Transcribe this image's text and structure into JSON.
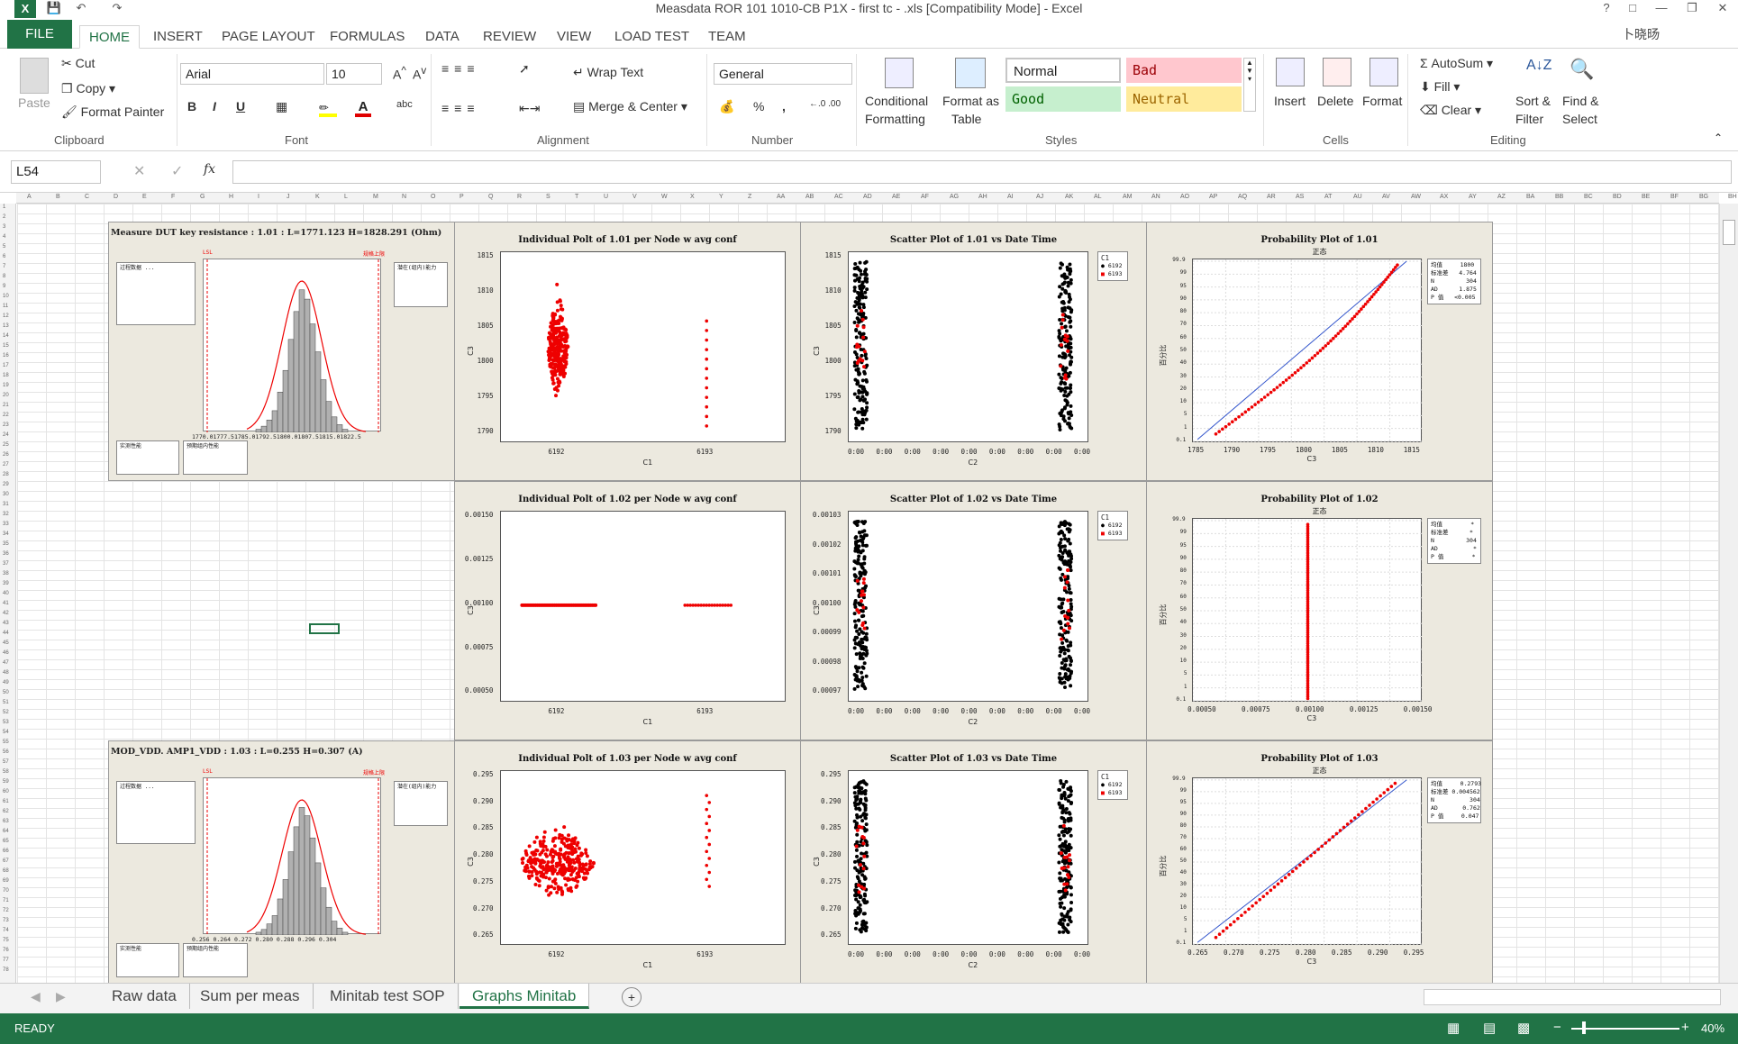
{
  "window": {
    "title": "Measdata ROR 101 1010-CB P1X - first tc - .xls  [Compatibility Mode] - Excel",
    "help": "?",
    "user": "卜晓旸"
  },
  "menu": {
    "tabs": [
      "FILE",
      "HOME",
      "INSERT",
      "PAGE LAYOUT",
      "FORMULAS",
      "DATA",
      "REVIEW",
      "VIEW",
      "LOAD TEST",
      "TEAM"
    ]
  },
  "ribbon": {
    "clipboard": {
      "paste": "Paste",
      "cut": "Cut",
      "copy": "Copy",
      "format_painter": "Format Painter",
      "label": "Clipboard"
    },
    "font": {
      "name": "Arial",
      "size": "10",
      "label": "Font",
      "bold": "B",
      "italic": "I",
      "underline": "U"
    },
    "alignment": {
      "wrap": "Wrap Text",
      "merge": "Merge & Center",
      "label": "Alignment"
    },
    "number": {
      "format": "General",
      "percent": "%",
      "comma": ",",
      "label": "Number"
    },
    "styles": {
      "conditional": "Conditional",
      "conditional2": "Formatting",
      "format_as": "Format as",
      "format_as2": "Table",
      "normal": "Normal",
      "bad": "Bad",
      "good": "Good",
      "neutral": "Neutral",
      "label": "Styles"
    },
    "cells": {
      "insert": "Insert",
      "delete": "Delete",
      "format": "Format",
      "label": "Cells"
    },
    "editing": {
      "autosum": "AutoSum",
      "fill": "Fill",
      "clear": "Clear",
      "sort": "Sort &",
      "sort2": "Filter",
      "find": "Find &",
      "find2": "Select",
      "label": "Editing"
    }
  },
  "formula_bar": {
    "name_box": "L54",
    "fx": "fx",
    "value": ""
  },
  "sheet": {
    "columns": [
      "A",
      "B",
      "C",
      "D",
      "E",
      "F",
      "G",
      "H",
      "I",
      "J",
      "K",
      "L",
      "M",
      "N",
      "O",
      "P",
      "Q",
      "R",
      "S",
      "T",
      "U",
      "V",
      "W",
      "X",
      "Y",
      "Z",
      "AA",
      "AB",
      "AC",
      "AD",
      "AE",
      "AF",
      "AG",
      "AH",
      "AI",
      "AJ",
      "AK",
      "AL",
      "AM",
      "AN",
      "AO",
      "AP",
      "AQ",
      "AR",
      "AS",
      "AT",
      "AU",
      "AV",
      "AW",
      "AX",
      "AY",
      "AZ",
      "BA",
      "BB",
      "BC",
      "BD",
      "BE",
      "BF",
      "BG",
      "BH"
    ]
  },
  "panels": {
    "row1": {
      "cap_title": "Measure DUT key resistance : 1.01 : L=1771.123 H=1828.291 (Ohm)",
      "cap_lsl": "LSL",
      "cap_usl": "规格上限",
      "cap_xticks": "1770.01777.51785.01792.51800.01807.51815.01822.5",
      "ind_title": "Individual Polt of 1.01 per Node w avg conf",
      "ind_y": [
        "1815",
        "1810",
        "1805",
        "1800",
        "1795",
        "1790"
      ],
      "ind_x": [
        "6192",
        "6193"
      ],
      "ind_xlabel": "C1",
      "sc_title": "Scatter Plot of 1.01 vs Date Time",
      "sc_y": [
        "1815",
        "1810",
        "1805",
        "1800",
        "1795",
        "1790"
      ],
      "sc_xlabel": "C2",
      "prob_title": "Probability Plot of 1.01",
      "prob_sub": "正态",
      "prob_x": [
        "1785",
        "1790",
        "1795",
        "1800",
        "1805",
        "1810",
        "1815"
      ],
      "prob_xlabel": "C3",
      "prob_stats": [
        "均值     1800",
        "标准差   4.764",
        "N         304",
        "AD      1.875",
        "P 值   <0.005"
      ]
    },
    "row2": {
      "ind_title": "Individual Polt of 1.02 per Node w avg conf",
      "ind_y": [
        "0.00150",
        "0.00125",
        "0.00100",
        "0.00075",
        "0.00050"
      ],
      "ind_x": [
        "6192",
        "6193"
      ],
      "ind_xlabel": "C1",
      "sc_title": "Scatter Plot of 1.02 vs Date Time",
      "sc_y": [
        "0.00103",
        "0.00102",
        "0.00101",
        "0.00100",
        "0.00099",
        "0.00098",
        "0.00097"
      ],
      "sc_xlabel": "C2",
      "prob_title": "Probability Plot of 1.02",
      "prob_sub": "正态",
      "prob_x": [
        "0.00050",
        "0.00075",
        "0.00100",
        "0.00125",
        "0.00150"
      ],
      "prob_xlabel": "C3",
      "prob_stats": [
        "均值        *",
        "标准差      *",
        "N         304",
        "AD          *",
        "P 值        *"
      ]
    },
    "row3": {
      "cap_title": "MOD_VDD. AMP1_VDD : 1.03 : L=0.255 H=0.307 (A)",
      "cap_lsl": "LSL",
      "cap_usl": "规格上限",
      "cap_xticks": "0.256  0.264  0.272  0.280  0.288  0.296  0.304",
      "ind_title": "Individual Polt of 1.03 per Node w avg conf",
      "ind_y": [
        "0.295",
        "0.290",
        "0.285",
        "0.280",
        "0.275",
        "0.270",
        "0.265"
      ],
      "ind_x": [
        "6192",
        "6193"
      ],
      "ind_xlabel": "C1",
      "sc_title": "Scatter Plot of 1.03 vs Date Time",
      "sc_y": [
        "0.295",
        "0.290",
        "0.285",
        "0.280",
        "0.275",
        "0.270",
        "0.265"
      ],
      "sc_xlabel": "C2",
      "prob_title": "Probability Plot of 1.03",
      "prob_sub": "正态",
      "prob_x": [
        "0.265",
        "0.270",
        "0.275",
        "0.280",
        "0.285",
        "0.290",
        "0.295"
      ],
      "prob_xlabel": "C3",
      "prob_stats": [
        "均值     0.2793",
        "标准差 0.004562",
        "N          304",
        "AD       0.762",
        "P 值     0.047"
      ]
    },
    "common": {
      "sc_x_tick": "0:00",
      "legend": [
        "C1",
        "6192",
        "6193"
      ],
      "prob_y": [
        "99.9",
        "99",
        "95",
        "90",
        "80",
        "70",
        "60",
        "50",
        "40",
        "30",
        "20",
        "10",
        "5",
        "1",
        "0.1"
      ],
      "prob_ylabel": "百分比",
      "ind_ylabel": "C3",
      "sc_ylabel": "C3"
    }
  },
  "sheet_tabs": [
    "Raw data",
    "Sum per meas",
    "Minitab test SOP",
    "Graphs Minitab"
  ],
  "status": {
    "ready": "READY",
    "zoom": "40%"
  },
  "colors": {
    "excel_green": "#217346",
    "red_points": "#e00000",
    "black_points": "#000000",
    "panel_bg": "#ece9df"
  }
}
